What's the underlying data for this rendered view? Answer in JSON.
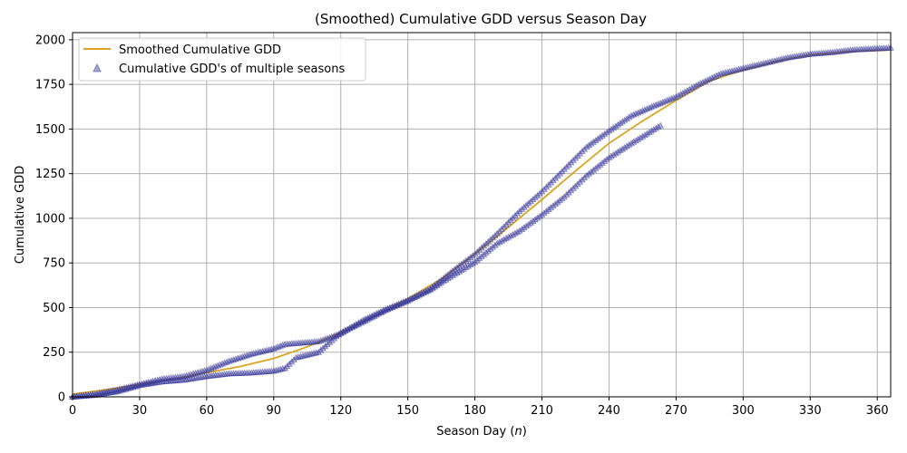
{
  "chart_data": {
    "type": "scatter",
    "title": "(Smoothed) Cumulative GDD versus Season Day",
    "xlabel_prefix": "Season Day (",
    "xlabel_var": "n",
    "xlabel_suffix": ")",
    "ylabel": "Cumulative GDD",
    "xlim": [
      0,
      366
    ],
    "ylim": [
      0,
      2040
    ],
    "xticks": [
      0,
      30,
      60,
      90,
      120,
      150,
      180,
      210,
      240,
      270,
      300,
      330,
      360
    ],
    "yticks": [
      0,
      250,
      500,
      750,
      1000,
      1250,
      1500,
      1750,
      2000
    ],
    "grid": true,
    "legend_position": "top-left",
    "colors": {
      "smoothed": "#DAA520",
      "markers": "#3A3A9A",
      "grid": "#b0b0b0"
    },
    "smoothed": {
      "name": "Smoothed Cumulative GDD",
      "x": [
        0,
        15,
        30,
        45,
        60,
        75,
        90,
        105,
        120,
        135,
        150,
        165,
        180,
        195,
        210,
        225,
        240,
        255,
        270,
        285,
        300,
        315,
        330,
        345,
        365
      ],
      "y": [
        15,
        40,
        70,
        100,
        135,
        170,
        215,
        280,
        360,
        450,
        550,
        660,
        800,
        950,
        1105,
        1265,
        1420,
        1545,
        1660,
        1770,
        1830,
        1880,
        1915,
        1932,
        1942
      ]
    },
    "seasons": {
      "name": "Cumulative GDD's of multiple seasons",
      "season_a": {
        "x": [
          0,
          10,
          20,
          30,
          40,
          50,
          60,
          70,
          80,
          90,
          95,
          100,
          110,
          120,
          130,
          140,
          150,
          160,
          170,
          180,
          190,
          200,
          210,
          220,
          230,
          240,
          250,
          260,
          270,
          280,
          290,
          300,
          310,
          320,
          330,
          340,
          350,
          366
        ],
        "y": [
          0,
          15,
          40,
          70,
          100,
          115,
          150,
          200,
          240,
          270,
          295,
          300,
          310,
          355,
          430,
          490,
          540,
          605,
          705,
          800,
          915,
          1040,
          1150,
          1275,
          1400,
          1490,
          1575,
          1630,
          1680,
          1750,
          1810,
          1840,
          1870,
          1900,
          1920,
          1930,
          1945,
          1955
        ]
      },
      "season_b": {
        "x": [
          0,
          10,
          20,
          30,
          40,
          50,
          60,
          70,
          80,
          90,
          95,
          100,
          110,
          120,
          130,
          140,
          150,
          160,
          170,
          180,
          190,
          200,
          210,
          220,
          230,
          240,
          250,
          263
        ],
        "y": [
          0,
          10,
          30,
          65,
          85,
          95,
          115,
          130,
          135,
          145,
          160,
          220,
          250,
          360,
          420,
          485,
          540,
          600,
          680,
          755,
          860,
          930,
          1020,
          1120,
          1240,
          1340,
          1420,
          1520
        ]
      }
    }
  }
}
